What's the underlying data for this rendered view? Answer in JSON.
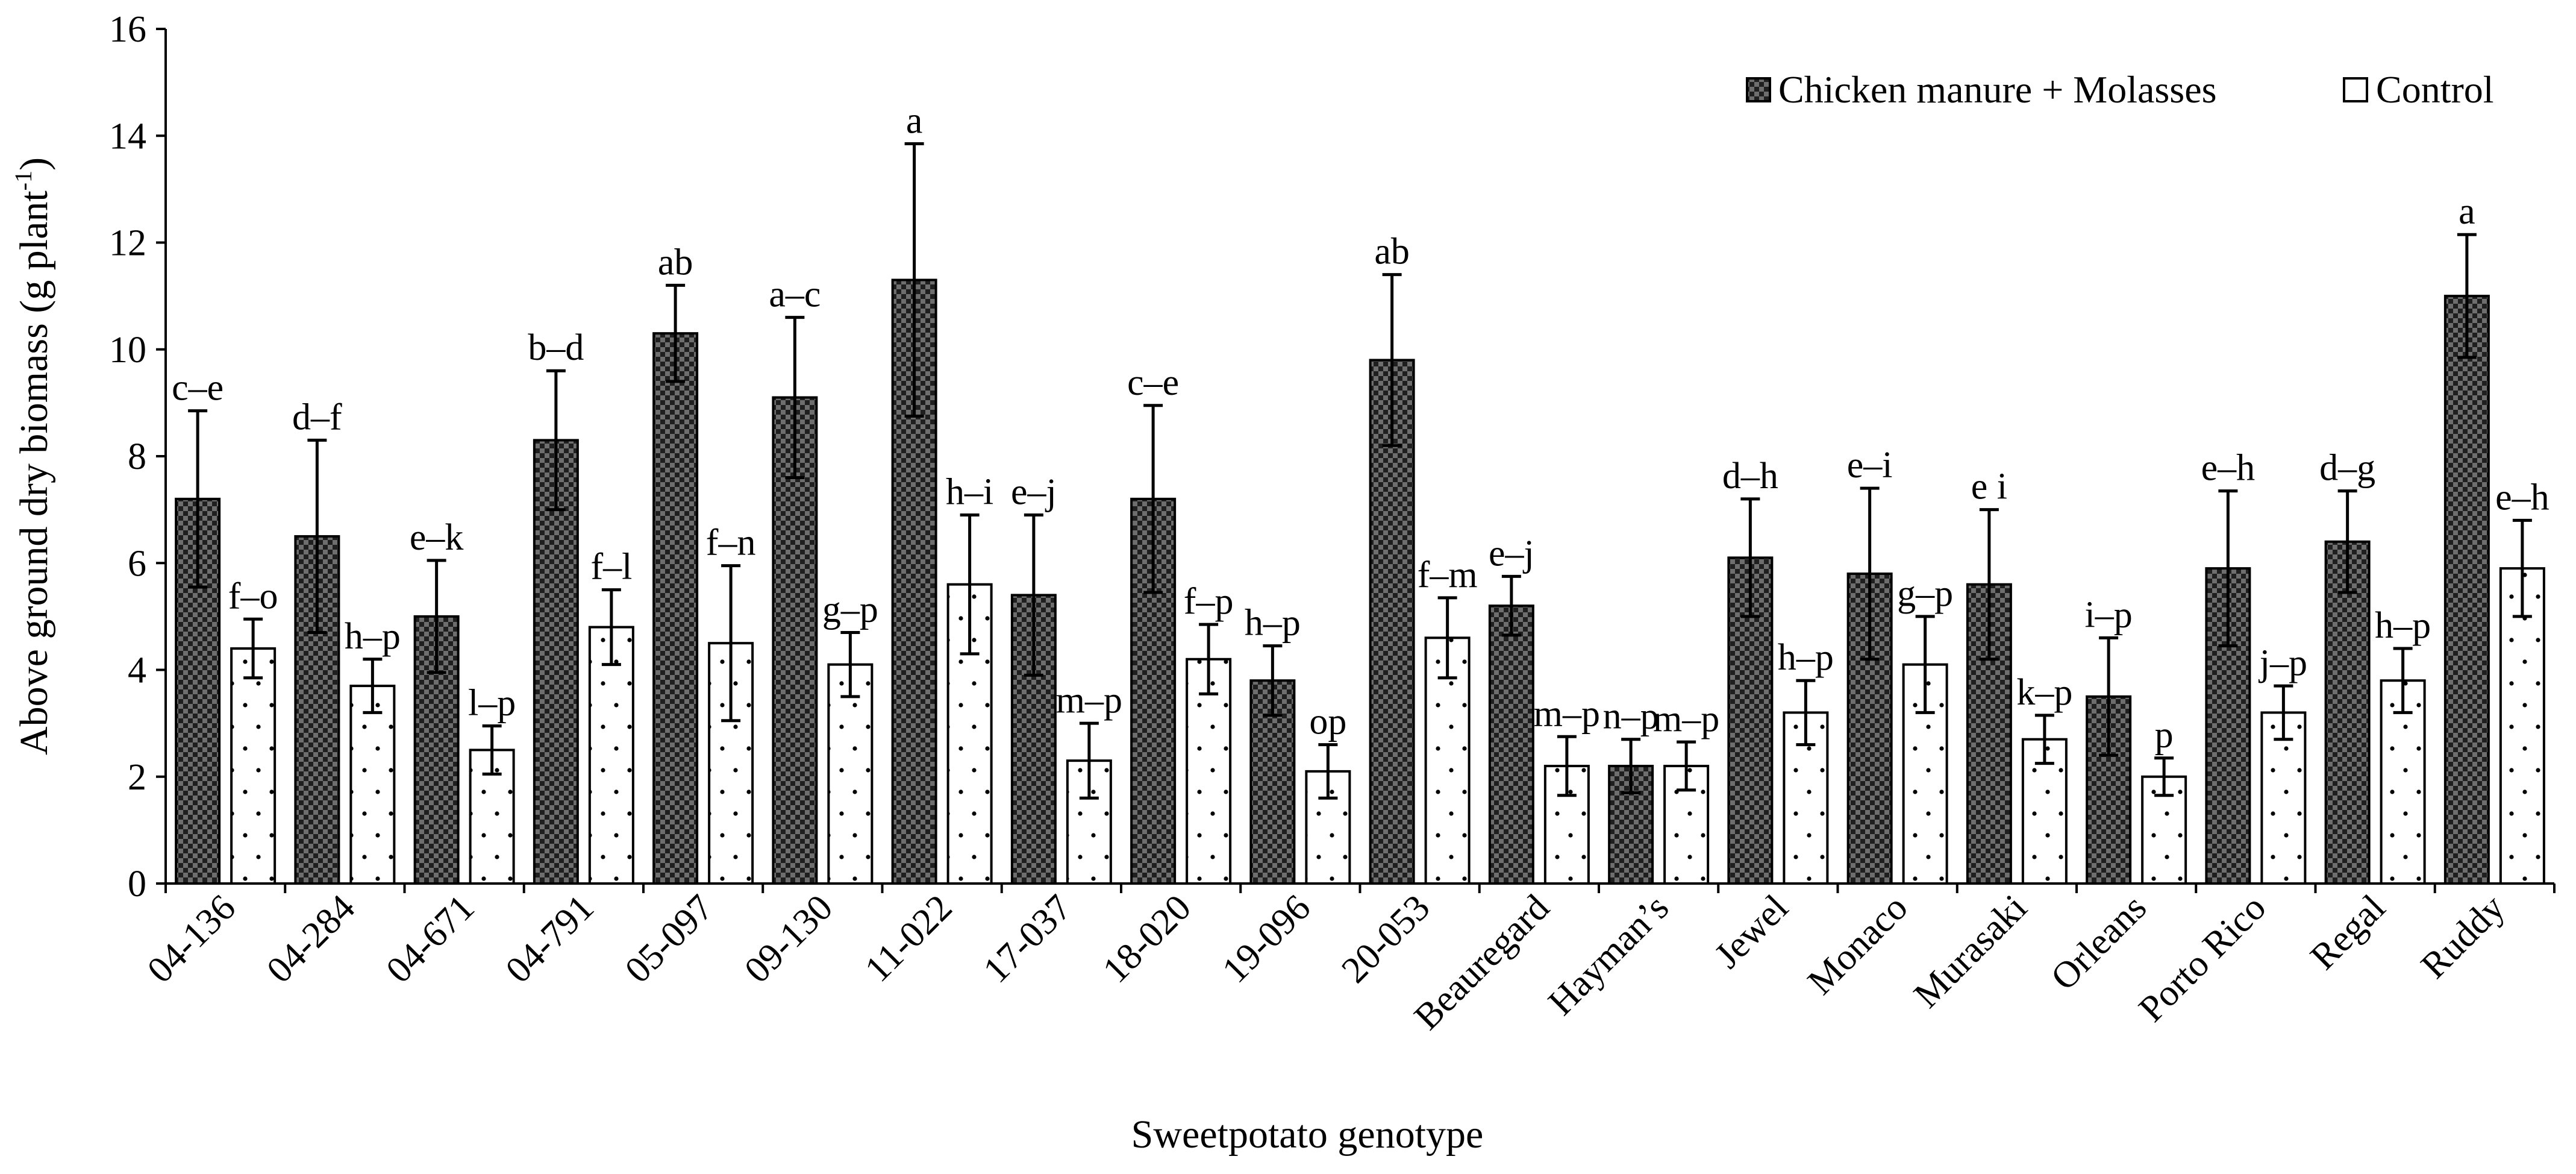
{
  "chart_data": {
    "type": "bar",
    "xlabel": "Sweetpotato genotype",
    "ylabel_main": "Above ground dry biomass (g plant",
    "ylabel_sup": "-1",
    "ylabel_close": ")",
    "ylim": [
      0,
      16
    ],
    "yticks": [
      0,
      2,
      4,
      6,
      8,
      10,
      12,
      14,
      16
    ],
    "grid": false,
    "legend_position": "top-right",
    "categories": [
      "04-136",
      "04-284",
      "04-671",
      "04-791",
      "05-097",
      "09-130",
      "11-022",
      "17-037",
      "18-020",
      "19-096",
      "20-053",
      "Beauregard",
      "Hayman’s",
      "Jewel",
      "Monaco",
      "Murasaki",
      "Orleans",
      "Porto Rico",
      "Regal",
      "Ruddy"
    ],
    "series": [
      {
        "name": "Chicken manure + Molasses",
        "pattern": "checkered",
        "values": [
          7.2,
          6.5,
          5.0,
          8.3,
          10.3,
          9.1,
          11.3,
          5.4,
          7.2,
          3.8,
          9.8,
          5.2,
          2.2,
          6.1,
          5.8,
          5.6,
          3.5,
          5.9,
          6.4,
          11.0
        ],
        "errors": [
          1.65,
          1.8,
          1.05,
          1.3,
          0.9,
          1.5,
          2.55,
          1.5,
          1.75,
          0.65,
          1.6,
          0.55,
          0.5,
          1.1,
          1.6,
          1.4,
          1.1,
          1.45,
          0.95,
          1.15
        ],
        "labels": [
          "c–e",
          "d–f",
          "e–k",
          "b–d",
          "ab",
          "a–c",
          "a",
          "e–j",
          "c–e",
          "h–p",
          "ab",
          "e–j",
          "n–p",
          "d–h",
          "e–i",
          "e  i",
          "i–p",
          "e–h",
          "d–g",
          "a"
        ]
      },
      {
        "name": "Control",
        "pattern": "dotted",
        "values": [
          4.4,
          3.7,
          2.5,
          4.8,
          4.5,
          4.1,
          5.6,
          2.3,
          4.2,
          2.1,
          4.6,
          2.2,
          2.2,
          3.2,
          4.1,
          2.7,
          2.0,
          3.2,
          3.8,
          5.9
        ],
        "errors": [
          0.55,
          0.5,
          0.45,
          0.7,
          1.45,
          0.6,
          1.3,
          0.7,
          0.65,
          0.5,
          0.75,
          0.55,
          0.45,
          0.6,
          0.9,
          0.45,
          0.35,
          0.5,
          0.6,
          0.9
        ],
        "labels": [
          "f–o",
          "h–p",
          "l–p",
          "f–l",
          "f–n",
          "g–p",
          "h–i",
          "m–p",
          "f–p",
          "op",
          "f–m",
          "m–p",
          "m–p",
          "h–p",
          "g–p",
          "k–p",
          "p",
          "j–p",
          "h–p",
          "e–h"
        ]
      }
    ]
  }
}
